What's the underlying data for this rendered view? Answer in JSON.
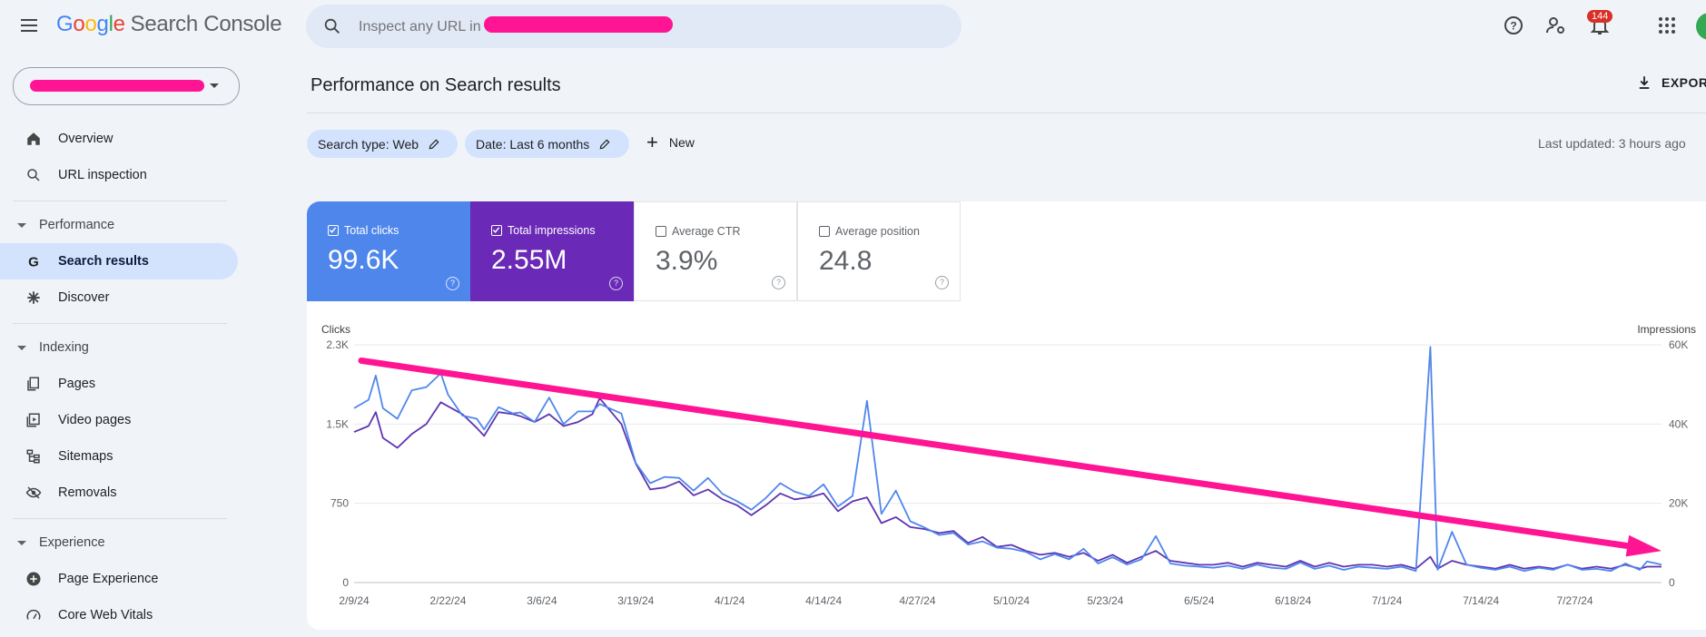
{
  "app": {
    "brand_letters": [
      "G",
      "o",
      "o",
      "g",
      "l",
      "e"
    ],
    "product": "Search Console"
  },
  "search": {
    "placeholder": "Inspect any URL in"
  },
  "notifications": {
    "count": "144"
  },
  "sidebar": {
    "items": [
      {
        "label": "Overview",
        "icon": "home-icon"
      },
      {
        "label": "URL inspection",
        "icon": "search-icon"
      },
      {
        "label": "Search results",
        "icon": "google-g-icon",
        "active": true
      },
      {
        "label": "Discover",
        "icon": "asterisk-icon"
      },
      {
        "label": "Pages",
        "icon": "pages-icon"
      },
      {
        "label": "Video pages",
        "icon": "video-pages-icon"
      },
      {
        "label": "Sitemaps",
        "icon": "sitemap-icon"
      },
      {
        "label": "Removals",
        "icon": "removals-icon"
      },
      {
        "label": "Page Experience",
        "icon": "plus-circle-icon"
      },
      {
        "label": "Core Web Vitals",
        "icon": "speed-icon"
      }
    ],
    "sections": {
      "performance": "Performance",
      "indexing": "Indexing",
      "experience": "Experience"
    }
  },
  "main": {
    "title": "Performance on Search results",
    "export_label": "EXPORT",
    "filters": {
      "search_type": "Search type: Web",
      "date": "Date: Last 6 months",
      "new_label": "New"
    },
    "last_updated": "Last updated: 3 hours ago"
  },
  "metrics": [
    {
      "label": "Total clicks",
      "value": "99.6K",
      "checked": true,
      "color": "#4f86ec"
    },
    {
      "label": "Total impressions",
      "value": "2.55M",
      "checked": true,
      "color": "#6a29b6"
    },
    {
      "label": "Average CTR",
      "value": "3.9%",
      "checked": false
    },
    {
      "label": "Average position",
      "value": "24.8",
      "checked": false
    }
  ],
  "colors": {
    "accent": "#d3e3fd",
    "clicks": "#4f86ec",
    "impressions": "#5e35b1",
    "annotation": "#ff1493"
  },
  "chart_data": {
    "type": "line",
    "left_axis_title": "Clicks",
    "right_axis_title": "Impressions",
    "left_ticks": [
      "2.3K",
      "1.5K",
      "750",
      "0"
    ],
    "right_ticks": [
      "60K",
      "40K",
      "20K",
      "0"
    ],
    "ylim_left": [
      0,
      2250
    ],
    "ylim_right": [
      0,
      60000
    ],
    "x_ticks": [
      "2/9/24",
      "2/22/24",
      "3/6/24",
      "3/19/24",
      "4/1/24",
      "4/14/24",
      "4/27/24",
      "5/10/24",
      "5/23/24",
      "6/5/24",
      "6/18/24",
      "7/1/24",
      "7/14/24",
      "7/27/24"
    ],
    "x_range": [
      "2024-02-09",
      "2024-08-08"
    ],
    "grid": true,
    "series": [
      {
        "name": "Total clicks",
        "axis": "left",
        "points": [
          [
            "2024-02-09",
            1650
          ],
          [
            "2024-02-11",
            1730
          ],
          [
            "2024-02-12",
            1960
          ],
          [
            "2024-02-13",
            1650
          ],
          [
            "2024-02-15",
            1550
          ],
          [
            "2024-02-17",
            1820
          ],
          [
            "2024-02-19",
            1850
          ],
          [
            "2024-02-21",
            1980
          ],
          [
            "2024-02-22",
            1780
          ],
          [
            "2024-02-24",
            1580
          ],
          [
            "2024-02-26",
            1550
          ],
          [
            "2024-02-27",
            1450
          ],
          [
            "2024-02-29",
            1660
          ],
          [
            "2024-03-02",
            1600
          ],
          [
            "2024-03-03",
            1610
          ],
          [
            "2024-03-05",
            1520
          ],
          [
            "2024-03-07",
            1750
          ],
          [
            "2024-03-09",
            1500
          ],
          [
            "2024-03-11",
            1620
          ],
          [
            "2024-03-13",
            1620
          ],
          [
            "2024-03-14",
            1690
          ],
          [
            "2024-03-17",
            1600
          ],
          [
            "2024-03-19",
            1130
          ],
          [
            "2024-03-21",
            940
          ],
          [
            "2024-03-23",
            1000
          ],
          [
            "2024-03-25",
            990
          ],
          [
            "2024-03-27",
            870
          ],
          [
            "2024-03-29",
            990
          ],
          [
            "2024-03-31",
            840
          ],
          [
            "2024-04-02",
            770
          ],
          [
            "2024-04-04",
            690
          ],
          [
            "2024-04-06",
            800
          ],
          [
            "2024-04-08",
            940
          ],
          [
            "2024-04-10",
            860
          ],
          [
            "2024-04-12",
            820
          ],
          [
            "2024-04-14",
            930
          ],
          [
            "2024-04-16",
            720
          ],
          [
            "2024-04-18",
            820
          ],
          [
            "2024-04-20",
            1720
          ],
          [
            "2024-04-22",
            650
          ],
          [
            "2024-04-24",
            870
          ],
          [
            "2024-04-26",
            580
          ],
          [
            "2024-04-28",
            520
          ],
          [
            "2024-04-30",
            450
          ],
          [
            "2024-05-02",
            470
          ],
          [
            "2024-05-04",
            360
          ],
          [
            "2024-05-06",
            390
          ],
          [
            "2024-05-08",
            330
          ],
          [
            "2024-05-10",
            320
          ],
          [
            "2024-05-12",
            290
          ],
          [
            "2024-05-14",
            220
          ],
          [
            "2024-05-16",
            270
          ],
          [
            "2024-05-18",
            220
          ],
          [
            "2024-05-20",
            320
          ],
          [
            "2024-05-22",
            180
          ],
          [
            "2024-05-24",
            240
          ],
          [
            "2024-05-26",
            170
          ],
          [
            "2024-05-28",
            220
          ],
          [
            "2024-05-30",
            440
          ],
          [
            "2024-06-01",
            180
          ],
          [
            "2024-06-03",
            160
          ],
          [
            "2024-06-05",
            150
          ],
          [
            "2024-06-07",
            140
          ],
          [
            "2024-06-09",
            160
          ],
          [
            "2024-06-11",
            130
          ],
          [
            "2024-06-13",
            170
          ],
          [
            "2024-06-15",
            140
          ],
          [
            "2024-06-17",
            130
          ],
          [
            "2024-06-19",
            190
          ],
          [
            "2024-06-21",
            130
          ],
          [
            "2024-06-23",
            160
          ],
          [
            "2024-06-25",
            120
          ],
          [
            "2024-06-27",
            150
          ],
          [
            "2024-06-29",
            140
          ],
          [
            "2024-07-01",
            130
          ],
          [
            "2024-07-03",
            150
          ],
          [
            "2024-07-05",
            110
          ],
          [
            "2024-07-07",
            2230
          ],
          [
            "2024-07-08",
            120
          ],
          [
            "2024-07-10",
            480
          ],
          [
            "2024-07-12",
            170
          ],
          [
            "2024-07-14",
            140
          ],
          [
            "2024-07-16",
            120
          ],
          [
            "2024-07-18",
            150
          ],
          [
            "2024-07-20",
            110
          ],
          [
            "2024-07-22",
            140
          ],
          [
            "2024-07-24",
            120
          ],
          [
            "2024-07-26",
            170
          ],
          [
            "2024-07-28",
            120
          ],
          [
            "2024-07-30",
            130
          ],
          [
            "2024-08-01",
            110
          ],
          [
            "2024-08-03",
            180
          ],
          [
            "2024-08-05",
            120
          ],
          [
            "2024-08-06",
            200
          ],
          [
            "2024-08-08",
            170
          ]
        ]
      },
      {
        "name": "Total impressions",
        "axis": "right",
        "points": [
          [
            "2024-02-09",
            38000
          ],
          [
            "2024-02-11",
            39500
          ],
          [
            "2024-02-12",
            43000
          ],
          [
            "2024-02-13",
            36500
          ],
          [
            "2024-02-15",
            34000
          ],
          [
            "2024-02-17",
            37500
          ],
          [
            "2024-02-19",
            40000
          ],
          [
            "2024-02-21",
            45500
          ],
          [
            "2024-02-22",
            44500
          ],
          [
            "2024-02-24",
            42500
          ],
          [
            "2024-02-26",
            39000
          ],
          [
            "2024-02-27",
            37000
          ],
          [
            "2024-02-29",
            43000
          ],
          [
            "2024-03-02",
            42500
          ],
          [
            "2024-03-03",
            42000
          ],
          [
            "2024-03-05",
            40500
          ],
          [
            "2024-03-07",
            42500
          ],
          [
            "2024-03-09",
            39500
          ],
          [
            "2024-03-11",
            40500
          ],
          [
            "2024-03-13",
            42500
          ],
          [
            "2024-03-14",
            46500
          ],
          [
            "2024-03-17",
            40000
          ],
          [
            "2024-03-19",
            30000
          ],
          [
            "2024-03-21",
            23500
          ],
          [
            "2024-03-23",
            24000
          ],
          [
            "2024-03-25",
            25500
          ],
          [
            "2024-03-27",
            22000
          ],
          [
            "2024-03-29",
            23500
          ],
          [
            "2024-03-31",
            21000
          ],
          [
            "2024-04-02",
            19500
          ],
          [
            "2024-04-04",
            17000
          ],
          [
            "2024-04-06",
            19500
          ],
          [
            "2024-04-08",
            22500
          ],
          [
            "2024-04-10",
            21000
          ],
          [
            "2024-04-12",
            21500
          ],
          [
            "2024-04-14",
            22500
          ],
          [
            "2024-04-16",
            18000
          ],
          [
            "2024-04-18",
            20500
          ],
          [
            "2024-04-20",
            21500
          ],
          [
            "2024-04-22",
            15000
          ],
          [
            "2024-04-24",
            16500
          ],
          [
            "2024-04-26",
            14000
          ],
          [
            "2024-04-28",
            13500
          ],
          [
            "2024-04-30",
            12500
          ],
          [
            "2024-05-02",
            13000
          ],
          [
            "2024-05-04",
            10000
          ],
          [
            "2024-05-06",
            11500
          ],
          [
            "2024-05-08",
            9000
          ],
          [
            "2024-05-10",
            9500
          ],
          [
            "2024-05-12",
            8000
          ],
          [
            "2024-05-14",
            7000
          ],
          [
            "2024-05-16",
            7500
          ],
          [
            "2024-05-18",
            6500
          ],
          [
            "2024-05-20",
            7500
          ],
          [
            "2024-05-22",
            5500
          ],
          [
            "2024-05-24",
            7000
          ],
          [
            "2024-05-26",
            5000
          ],
          [
            "2024-05-28",
            6500
          ],
          [
            "2024-05-30",
            8000
          ],
          [
            "2024-06-01",
            5500
          ],
          [
            "2024-06-03",
            5000
          ],
          [
            "2024-06-05",
            4500
          ],
          [
            "2024-06-07",
            4500
          ],
          [
            "2024-06-09",
            5000
          ],
          [
            "2024-06-11",
            4000
          ],
          [
            "2024-06-13",
            5000
          ],
          [
            "2024-06-15",
            4500
          ],
          [
            "2024-06-17",
            4000
          ],
          [
            "2024-06-19",
            5500
          ],
          [
            "2024-06-21",
            4000
          ],
          [
            "2024-06-23",
            5000
          ],
          [
            "2024-06-25",
            4000
          ],
          [
            "2024-06-27",
            4500
          ],
          [
            "2024-06-29",
            4500
          ],
          [
            "2024-07-01",
            4000
          ],
          [
            "2024-07-03",
            4500
          ],
          [
            "2024-07-05",
            3500
          ],
          [
            "2024-07-07",
            6500
          ],
          [
            "2024-07-08",
            3500
          ],
          [
            "2024-07-10",
            5500
          ],
          [
            "2024-07-12",
            4500
          ],
          [
            "2024-07-14",
            4000
          ],
          [
            "2024-07-16",
            3500
          ],
          [
            "2024-07-18",
            4500
          ],
          [
            "2024-07-20",
            3500
          ],
          [
            "2024-07-22",
            4000
          ],
          [
            "2024-07-24",
            3500
          ],
          [
            "2024-07-26",
            4500
          ],
          [
            "2024-07-28",
            3500
          ],
          [
            "2024-07-30",
            4000
          ],
          [
            "2024-08-01",
            3500
          ],
          [
            "2024-08-03",
            4500
          ],
          [
            "2024-08-05",
            3500
          ],
          [
            "2024-08-06",
            4000
          ],
          [
            "2024-08-08",
            4000
          ]
        ]
      }
    ],
    "annotation": {
      "type": "arrow",
      "from": [
        "2024-02-10",
        2100
      ],
      "to": [
        "2024-08-08",
        300
      ]
    }
  }
}
